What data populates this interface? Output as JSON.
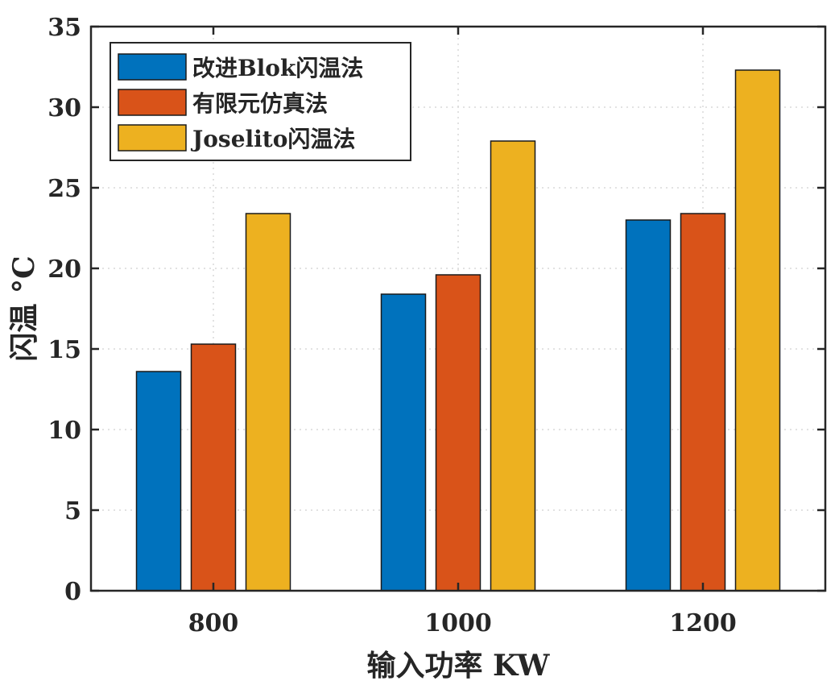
{
  "chart_data": {
    "type": "bar",
    "categories": [
      "800",
      "1000",
      "1200"
    ],
    "series": [
      {
        "name": "改进Blok闪温法",
        "values": [
          13.6,
          18.4,
          23.0
        ],
        "color": "#0072BD"
      },
      {
        "name": "有限元仿真法",
        "values": [
          15.3,
          19.6,
          23.4
        ],
        "color": "#D95319"
      },
      {
        "name": "Joselito闪温法",
        "values": [
          23.4,
          27.9,
          32.3
        ],
        "color": "#EDB120"
      }
    ],
    "xlabel": "输入功率 KW",
    "ylabel": "闪温 °C",
    "ylim": [
      0,
      35
    ],
    "yticks": [
      0,
      5,
      10,
      15,
      20,
      25,
      30,
      35
    ],
    "grid": true,
    "legend_position": "top-left"
  }
}
